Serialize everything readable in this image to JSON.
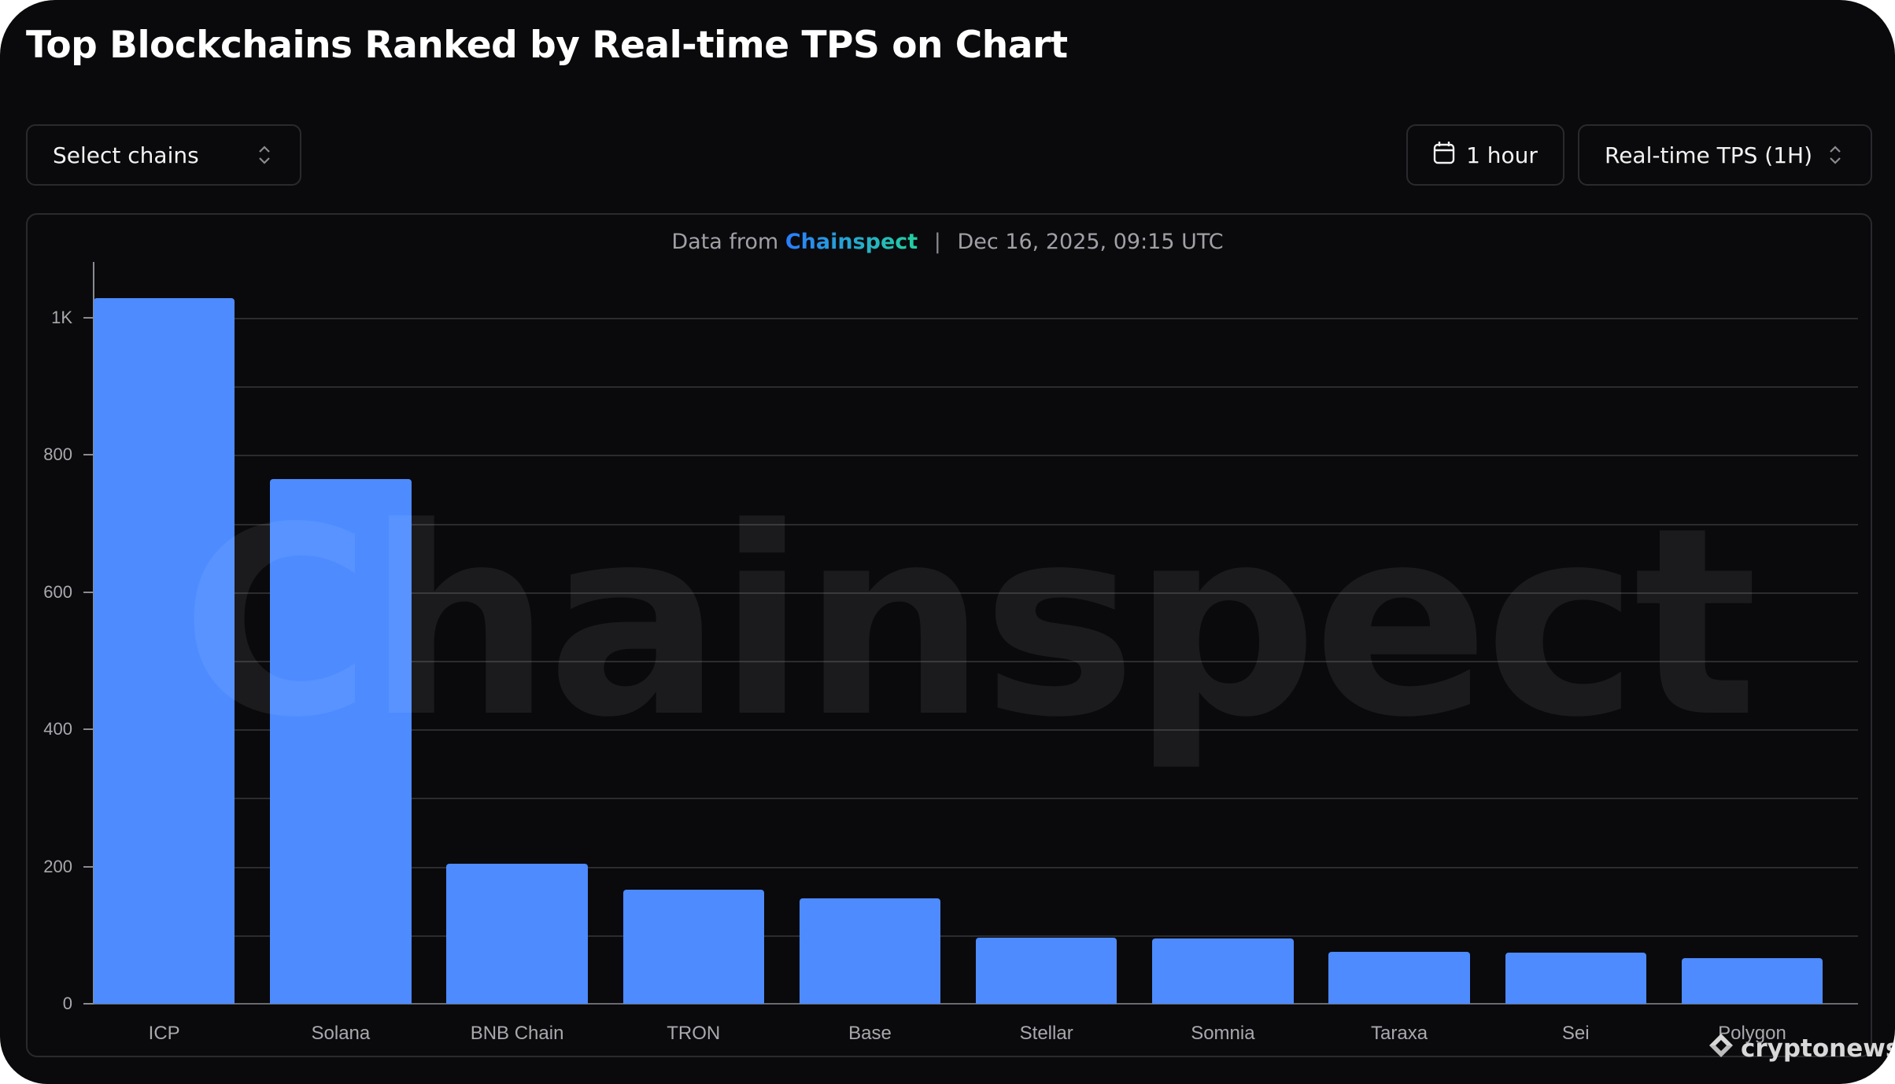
{
  "header": {
    "title": "Top Blockchains Ranked by Real-time TPS on Chart"
  },
  "controls": {
    "select_chains_label": "Select chains",
    "time_range_label": "1 hour",
    "metric_label": "Real-time TPS (1H)"
  },
  "source": {
    "prefix": "Data from",
    "brand": "Chainspect",
    "separator": "|",
    "timestamp": "Dec 16, 2025, 09:15 UTC"
  },
  "watermark": "Chainspect",
  "logo_text": "cryptonews",
  "colors": {
    "bar": "#4d8bff",
    "background": "#0a0a0c",
    "brand_gradient_start": "#2a7dff",
    "brand_gradient_end": "#23d0a0"
  },
  "icons": {
    "calendar": "calendar-icon",
    "updown": "chevron-updown-icon"
  },
  "chart_data": {
    "type": "bar",
    "title": "Top Blockchains Ranked by Real-time TPS on Chart",
    "xlabel": "",
    "ylabel": "Real-time TPS (1H)",
    "categories": [
      "ICP",
      "Solana",
      "BNB Chain",
      "TRON",
      "Base",
      "Stellar",
      "Somnia",
      "Taraxa",
      "Sei",
      "Polygon"
    ],
    "values": [
      1029,
      765,
      204,
      166,
      154,
      96,
      95,
      76,
      75,
      66
    ],
    "ylim": [
      0,
      1080
    ],
    "yticks": [
      0,
      200,
      400,
      600,
      800,
      1000
    ],
    "ytick_labels": [
      "0",
      "200",
      "400",
      "600",
      "800",
      "1K"
    ],
    "grid": true,
    "legend": null
  }
}
